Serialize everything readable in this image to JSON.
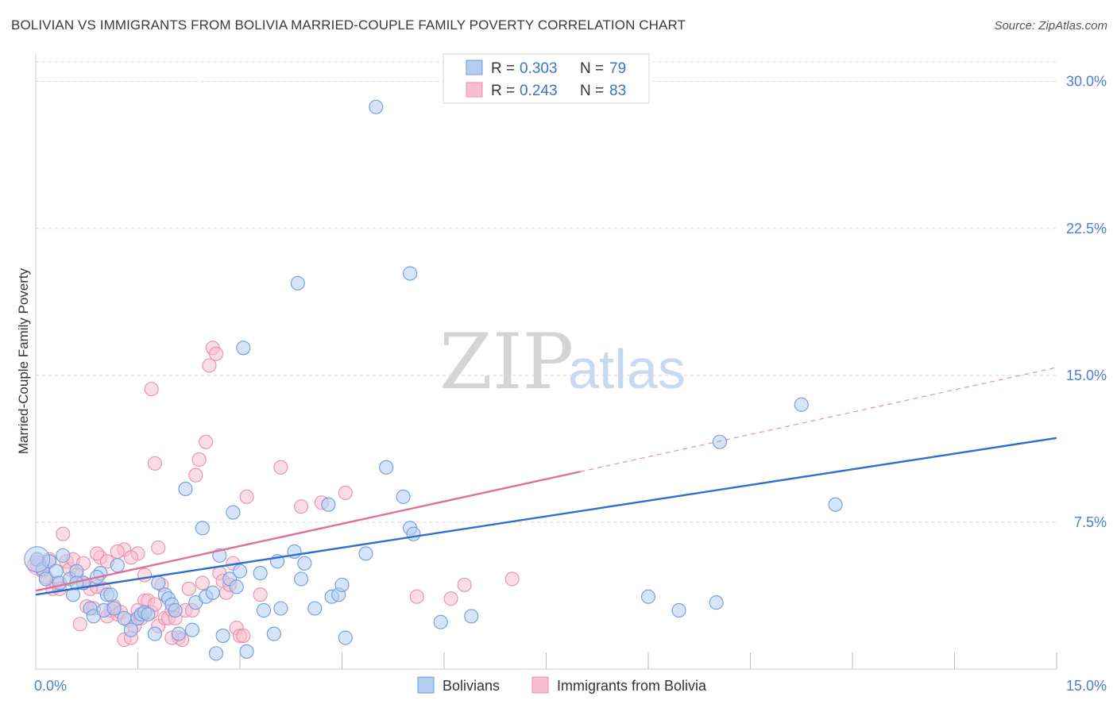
{
  "title": "BOLIVIAN VS IMMIGRANTS FROM BOLIVIA MARRIED-COUPLE FAMILY POVERTY CORRELATION CHART",
  "source": "Source: ZipAtlas.com",
  "watermark": {
    "zip": "ZIP",
    "atlas": "atlas"
  },
  "colors": {
    "blue_fill": "#b3cdf0",
    "blue_stroke": "#6f9be0",
    "blue_line": "#2d6fcf",
    "pink_fill": "#f6bfd0",
    "pink_stroke": "#ea8fad",
    "pink_line": "#e0709a",
    "grid": "#d8d8d8",
    "tick_text": "#4a7fd4"
  },
  "legend": {
    "rows": [
      {
        "r_label": "R =",
        "r_value": "0.303",
        "n_label": "N =",
        "n_value": "79"
      },
      {
        "r_label": "R =",
        "r_value": "0.243",
        "n_label": "N =",
        "n_value": "83"
      }
    ]
  },
  "chart_data": {
    "type": "scatter",
    "title": "BOLIVIAN VS IMMIGRANTS FROM BOLIVIA MARRIED-COUPLE FAMILY POVERTY CORRELATION CHART",
    "xlabel": "",
    "ylabel": "Married-Couple Family Poverty",
    "xlim": [
      0,
      15
    ],
    "ylim": [
      0,
      31
    ],
    "x_tick_labels": [
      {
        "value": 0,
        "label": "0.0%"
      },
      {
        "value": 15,
        "label": "15.0%"
      }
    ],
    "y_ticks": [
      {
        "value": 7.5,
        "label": "7.5%"
      },
      {
        "value": 15.0,
        "label": "15.0%"
      },
      {
        "value": 22.5,
        "label": "22.5%"
      },
      {
        "value": 30.0,
        "label": "30.0%"
      }
    ],
    "x_minor_ticks": [
      1.5,
      3.0,
      4.5,
      6.0,
      7.5,
      9.0,
      10.5,
      12.0,
      13.5,
      15.0
    ],
    "series": [
      {
        "name": "Bolivians",
        "color": "blue",
        "r": 0.303,
        "n": 79,
        "trend": {
          "x0": 0,
          "y0": 3.8,
          "x1": 15,
          "y1": 11.8,
          "solid_to": 15
        },
        "points": [
          [
            0.02,
            5.6
          ],
          [
            0.1,
            5.1
          ],
          [
            0.15,
            4.6
          ],
          [
            0.2,
            5.5
          ],
          [
            0.3,
            5.0
          ],
          [
            0.35,
            4.4
          ],
          [
            0.4,
            5.8
          ],
          [
            0.5,
            4.6
          ],
          [
            0.55,
            3.8
          ],
          [
            0.6,
            5.0
          ],
          [
            0.7,
            4.4
          ],
          [
            0.8,
            3.1
          ],
          [
            0.85,
            2.7
          ],
          [
            0.95,
            4.9
          ],
          [
            1.0,
            3.0
          ],
          [
            1.05,
            3.8
          ],
          [
            1.1,
            3.8
          ],
          [
            1.2,
            5.3
          ],
          [
            1.3,
            2.6
          ],
          [
            1.4,
            2.0
          ],
          [
            1.5,
            2.6
          ],
          [
            1.55,
            2.8
          ],
          [
            1.6,
            2.9
          ],
          [
            1.65,
            2.8
          ],
          [
            1.75,
            1.8
          ],
          [
            1.8,
            4.4
          ],
          [
            1.9,
            3.8
          ],
          [
            1.95,
            3.6
          ],
          [
            2.0,
            3.3
          ],
          [
            2.05,
            3.0
          ],
          [
            2.1,
            1.8
          ],
          [
            2.2,
            9.2
          ],
          [
            2.3,
            2.0
          ],
          [
            2.35,
            3.4
          ],
          [
            2.45,
            7.2
          ],
          [
            2.5,
            3.7
          ],
          [
            2.6,
            3.9
          ],
          [
            2.7,
            5.8
          ],
          [
            2.75,
            1.7
          ],
          [
            2.65,
            0.8
          ],
          [
            2.85,
            4.6
          ],
          [
            2.9,
            8.0
          ],
          [
            2.95,
            4.2
          ],
          [
            3.0,
            5.0
          ],
          [
            3.1,
            0.9
          ],
          [
            3.05,
            16.4
          ],
          [
            3.3,
            4.9
          ],
          [
            3.35,
            3.0
          ],
          [
            3.5,
            1.8
          ],
          [
            3.55,
            5.5
          ],
          [
            3.6,
            3.1
          ],
          [
            3.8,
            6.0
          ],
          [
            3.85,
            19.7
          ],
          [
            3.9,
            4.6
          ],
          [
            3.95,
            5.4
          ],
          [
            4.1,
            3.1
          ],
          [
            4.3,
            8.4
          ],
          [
            4.35,
            3.7
          ],
          [
            4.45,
            3.8
          ],
          [
            4.5,
            4.3
          ],
          [
            4.55,
            1.6
          ],
          [
            4.85,
            5.9
          ],
          [
            5.0,
            28.7
          ],
          [
            5.15,
            10.3
          ],
          [
            5.4,
            8.8
          ],
          [
            5.5,
            7.2
          ],
          [
            5.5,
            20.2
          ],
          [
            5.55,
            6.9
          ],
          [
            5.95,
            2.4
          ],
          [
            6.4,
            2.7
          ],
          [
            9.0,
            3.7
          ],
          [
            9.45,
            3.0
          ],
          [
            10.05,
            11.6
          ],
          [
            10.0,
            3.4
          ],
          [
            11.25,
            13.5
          ],
          [
            11.75,
            8.4
          ],
          [
            0.9,
            4.7
          ],
          [
            1.15,
            3.1
          ],
          [
            0.6,
            4.4
          ]
        ]
      },
      {
        "name": "Immigrants from Bolivia",
        "color": "pink",
        "r": 0.243,
        "n": 83,
        "trend": {
          "x0": 0,
          "y0": 4.0,
          "x1": 15,
          "y1": 15.4,
          "solid_to": 8.0
        },
        "points": [
          [
            0.02,
            5.3
          ],
          [
            0.1,
            5.0
          ],
          [
            0.15,
            4.7
          ],
          [
            0.2,
            5.6
          ],
          [
            0.25,
            4.1
          ],
          [
            0.3,
            4.4
          ],
          [
            0.35,
            4.1
          ],
          [
            0.4,
            6.9
          ],
          [
            0.45,
            5.5
          ],
          [
            0.5,
            5.1
          ],
          [
            0.55,
            5.6
          ],
          [
            0.6,
            4.8
          ],
          [
            0.65,
            2.3
          ],
          [
            0.7,
            4.4
          ],
          [
            0.75,
            3.2
          ],
          [
            0.8,
            4.1
          ],
          [
            0.85,
            3.1
          ],
          [
            0.9,
            4.2
          ],
          [
            0.95,
            5.7
          ],
          [
            1.0,
            4.1
          ],
          [
            1.05,
            2.7
          ],
          [
            1.1,
            3.0
          ],
          [
            1.15,
            3.2
          ],
          [
            1.2,
            2.8
          ],
          [
            1.25,
            2.9
          ],
          [
            1.3,
            1.5
          ],
          [
            1.3,
            6.1
          ],
          [
            1.35,
            2.5
          ],
          [
            1.4,
            1.6
          ],
          [
            1.45,
            2.2
          ],
          [
            1.5,
            5.9
          ],
          [
            1.55,
            2.6
          ],
          [
            1.6,
            3.5
          ],
          [
            1.65,
            3.5
          ],
          [
            1.7,
            2.9
          ],
          [
            1.75,
            3.3
          ],
          [
            1.8,
            2.2
          ],
          [
            1.85,
            4.3
          ],
          [
            1.9,
            2.6
          ],
          [
            1.95,
            2.6
          ],
          [
            2.0,
            3.0
          ],
          [
            2.05,
            2.6
          ],
          [
            2.1,
            1.6
          ],
          [
            2.15,
            1.5
          ],
          [
            2.2,
            3.0
          ],
          [
            2.25,
            4.1
          ],
          [
            2.3,
            3.0
          ],
          [
            2.35,
            9.9
          ],
          [
            2.4,
            10.7
          ],
          [
            2.45,
            4.4
          ],
          [
            2.5,
            11.6
          ],
          [
            2.55,
            15.5
          ],
          [
            2.6,
            16.4
          ],
          [
            2.65,
            16.1
          ],
          [
            2.7,
            4.9
          ],
          [
            2.75,
            4.5
          ],
          [
            2.8,
            3.9
          ],
          [
            2.85,
            4.3
          ],
          [
            2.9,
            5.4
          ],
          [
            2.95,
            2.1
          ],
          [
            3.0,
            1.7
          ],
          [
            3.05,
            1.7
          ],
          [
            3.1,
            8.8
          ],
          [
            3.3,
            3.8
          ],
          [
            3.6,
            10.3
          ],
          [
            3.9,
            8.3
          ],
          [
            4.2,
            8.5
          ],
          [
            4.55,
            9.0
          ],
          [
            6.1,
            3.6
          ],
          [
            6.3,
            4.3
          ],
          [
            7.0,
            4.6
          ],
          [
            5.6,
            3.7
          ],
          [
            1.7,
            14.3
          ],
          [
            1.75,
            10.5
          ],
          [
            1.8,
            6.2
          ],
          [
            1.6,
            4.8
          ],
          [
            1.4,
            5.7
          ],
          [
            1.2,
            6.0
          ],
          [
            0.9,
            5.9
          ],
          [
            0.7,
            5.4
          ],
          [
            1.05,
            5.5
          ],
          [
            2.0,
            1.6
          ],
          [
            1.5,
            3.0
          ]
        ]
      }
    ]
  },
  "bottom_legend": [
    {
      "label": "Bolivians",
      "color": "blue"
    },
    {
      "label": "Immigrants from Bolivia",
      "color": "pink"
    }
  ]
}
